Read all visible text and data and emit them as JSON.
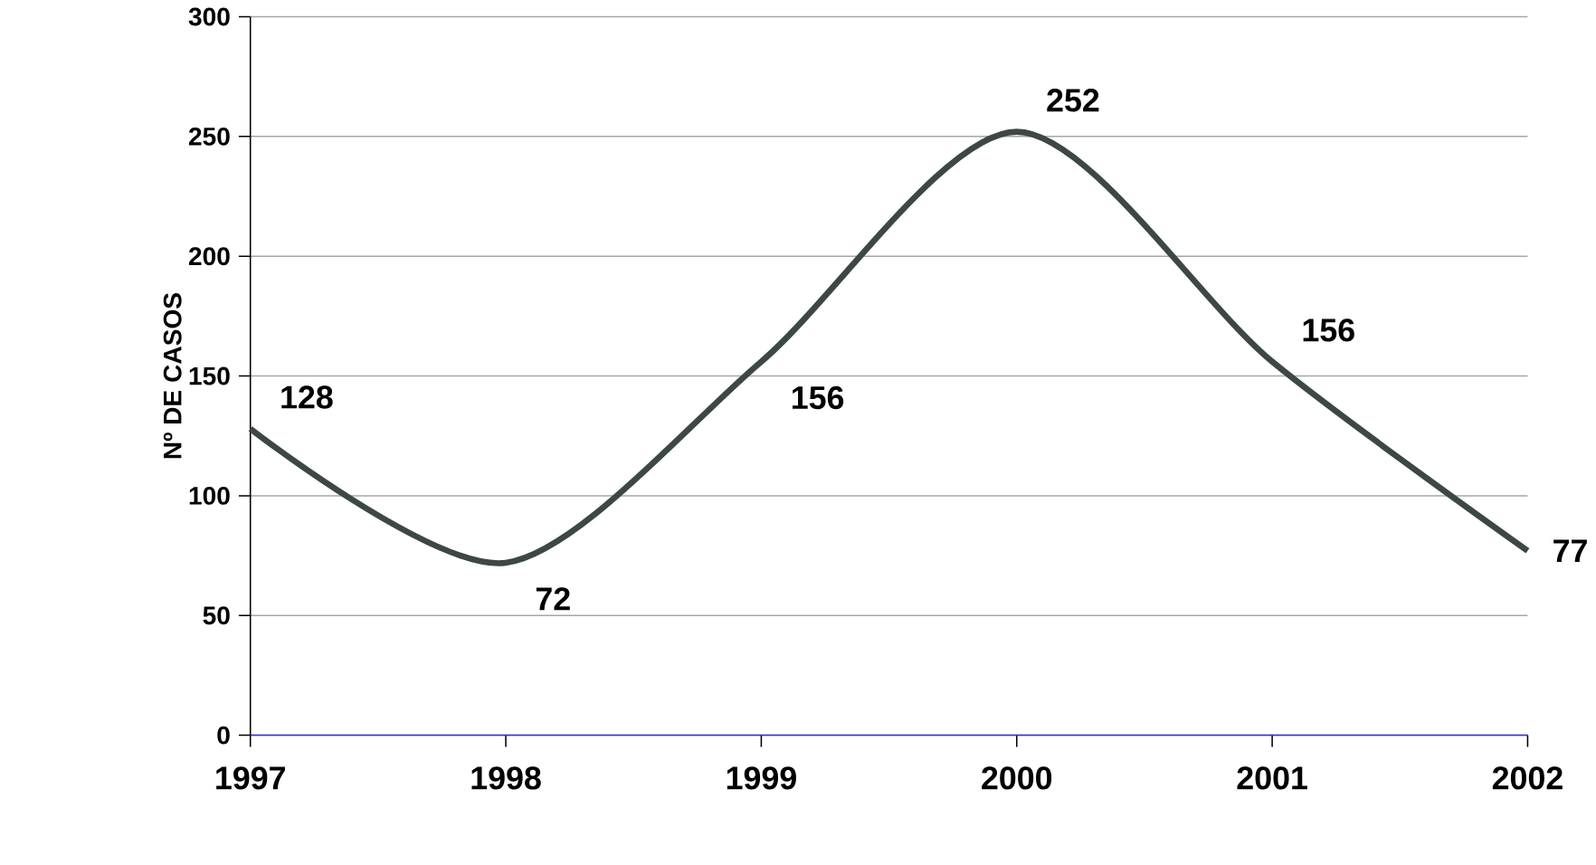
{
  "chart_data": {
    "type": "line",
    "ylabel": "Nº DE CASOS",
    "categories": [
      "1997",
      "1998",
      "1999",
      "2000",
      "2001",
      "2002"
    ],
    "series": [
      {
        "color": "#3d4846",
        "values": [
          128,
          72,
          156,
          252,
          156,
          77
        ]
      }
    ],
    "ylim": [
      0,
      300
    ],
    "yticks": [
      0,
      50,
      100,
      150,
      200,
      250,
      300
    ],
    "grid": "y",
    "data_labels": true
  }
}
